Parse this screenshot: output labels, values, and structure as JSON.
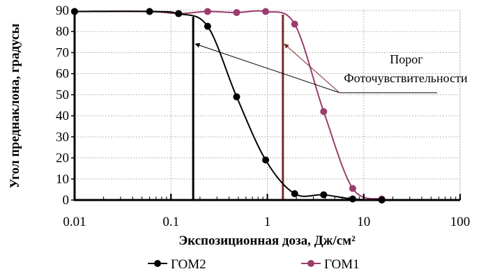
{
  "chart_data": {
    "type": "scatter",
    "title": "",
    "xlabel": "Экспозиционная доза, Дж/см²",
    "ylabel": "Угол преднаклона, градусы",
    "x_scale": "log",
    "xlim": [
      0.01,
      100
    ],
    "ylim": [
      0,
      90
    ],
    "x_ticks": [
      "0.01",
      "0.1",
      "1",
      "10",
      "100"
    ],
    "y_ticks": [
      "0",
      "10",
      "20",
      "30",
      "40",
      "50",
      "60",
      "70",
      "80",
      "90"
    ],
    "grid": true,
    "legend_position": "bottom",
    "series": [
      {
        "name": "ГОМ2",
        "color": "#000000",
        "marker": "circle",
        "points": [
          {
            "x": 0.01,
            "y": 89.5
          },
          {
            "x": 0.06,
            "y": 89.5
          },
          {
            "x": 0.12,
            "y": 88.5
          },
          {
            "x": 0.24,
            "y": 82.5
          },
          {
            "x": 0.48,
            "y": 49
          },
          {
            "x": 0.96,
            "y": 19
          },
          {
            "x": 1.92,
            "y": 3
          },
          {
            "x": 3.84,
            "y": 2.5
          },
          {
            "x": 7.68,
            "y": 0.5
          },
          {
            "x": 15.4,
            "y": 0
          }
        ]
      },
      {
        "name": "ГОМ1",
        "color": "#9b3c6d",
        "marker": "circle",
        "points": [
          {
            "x": 0.01,
            "y": 89.5
          },
          {
            "x": 0.06,
            "y": 89.5
          },
          {
            "x": 0.12,
            "y": 88.5
          },
          {
            "x": 0.24,
            "y": 89.5
          },
          {
            "x": 0.48,
            "y": 89
          },
          {
            "x": 0.96,
            "y": 89.5
          },
          {
            "x": 1.92,
            "y": 83.5
          },
          {
            "x": 3.84,
            "y": 42
          },
          {
            "x": 7.68,
            "y": 5.5
          },
          {
            "x": 15.4,
            "y": 0.5
          }
        ]
      }
    ],
    "threshold_lines": [
      {
        "series": "ГОМ2",
        "x": 0.17,
        "y_top": 87,
        "color": "#000000"
      },
      {
        "series": "ГОМ1",
        "x": 1.45,
        "y_top": 88,
        "color": "#7b2a2a"
      }
    ],
    "annotation": {
      "lines": [
        "Порог",
        "Фоточувствительности"
      ]
    }
  }
}
